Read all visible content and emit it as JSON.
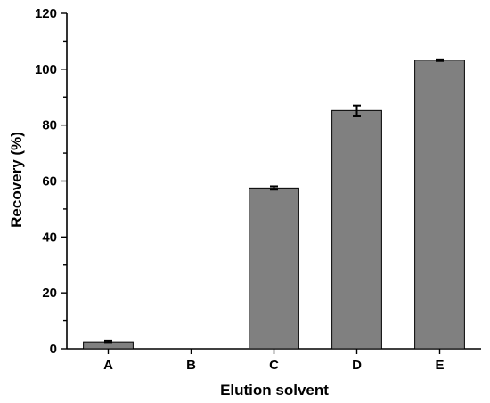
{
  "chart_data": {
    "type": "bar",
    "title": "",
    "xlabel": "Elution solvent",
    "ylabel": "Recovery (%)",
    "categories": [
      "A",
      "B",
      "C",
      "D",
      "E"
    ],
    "values": [
      2.5,
      0,
      57.5,
      85.2,
      103.2
    ],
    "errors": [
      0.4,
      0,
      0.6,
      1.8,
      0.3
    ],
    "ylim": [
      0,
      120
    ],
    "yticks": [
      0,
      20,
      40,
      60,
      80,
      100,
      120
    ],
    "ytick_labels": [
      "0",
      "20",
      "40",
      "60",
      "80",
      "100",
      "120"
    ],
    "grid": false,
    "legend": "none",
    "bar_color": "#808080"
  }
}
